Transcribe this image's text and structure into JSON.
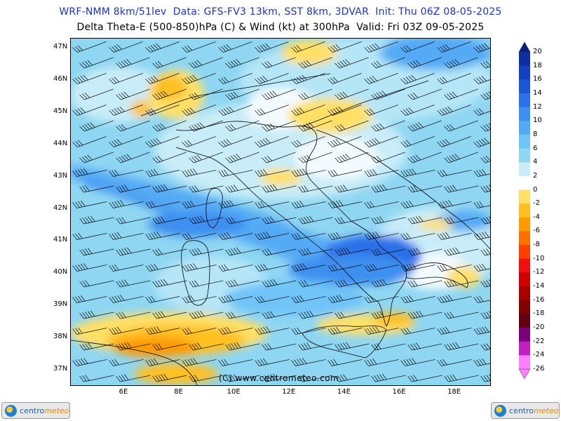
{
  "title_line1": "WRF-NMM 8km/51lev  Data: GFS-FV3 13km, SST 8km, 3DVAR  Init: Thu 06Z 08-05-2025",
  "title_line2": "Delta Theta-E (500-850)hPa (C) & Wind (kt) at 300hPa  Valid: Fri 03Z 09-05-2025",
  "lat_ticks": [
    {
      "label": "47N",
      "lat": 47
    },
    {
      "label": "46N",
      "lat": 46
    },
    {
      "label": "45N",
      "lat": 45
    },
    {
      "label": "44N",
      "lat": 44
    },
    {
      "label": "43N",
      "lat": 43
    },
    {
      "label": "42N",
      "lat": 42
    },
    {
      "label": "41N",
      "lat": 41
    },
    {
      "label": "40N",
      "lat": 40
    },
    {
      "label": "39N",
      "lat": 39
    },
    {
      "label": "38N",
      "lat": 38
    },
    {
      "label": "37N",
      "lat": 37
    }
  ],
  "lon_ticks": [
    {
      "label": "6E",
      "lon": 6
    },
    {
      "label": "8E",
      "lon": 8
    },
    {
      "label": "10E",
      "lon": 10
    },
    {
      "label": "12E",
      "lon": 12
    },
    {
      "label": "14E",
      "lon": 14
    },
    {
      "label": "16E",
      "lon": 16
    },
    {
      "label": "18E",
      "lon": 18
    }
  ],
  "colorbar": {
    "levels": [
      "20",
      "18",
      "16",
      "14",
      "12",
      "10",
      "8",
      "6",
      "4",
      "2",
      "0",
      "-2",
      "-4",
      "-6",
      "-8",
      "-10",
      "-12",
      "-14",
      "-16",
      "-18",
      "-20",
      "-22",
      "-24",
      "-26"
    ],
    "colors": [
      "#0a1f7a",
      "#0d2fa0",
      "#1240c0",
      "#1a55d8",
      "#2a70e8",
      "#3d8ff0",
      "#55aaf5",
      "#6fc4f8",
      "#8fd6f2",
      "#c8ecf8",
      "#ffffff",
      "#ffe066",
      "#ffc020",
      "#ff9a00",
      "#ff7000",
      "#ff4000",
      "#f01010",
      "#d00000",
      "#a80000",
      "#800000",
      "#600010",
      "#780078",
      "#c020c0",
      "#ff80ff"
    ]
  },
  "copyright": "(C) www.centrometeo.com",
  "logo_text": {
    "part1": "centro",
    "part2": "meteo"
  },
  "map": {
    "base_color": "#8fd6f2",
    "icons": [
      "wind-barb-icon",
      "coastline-icon"
    ]
  }
}
